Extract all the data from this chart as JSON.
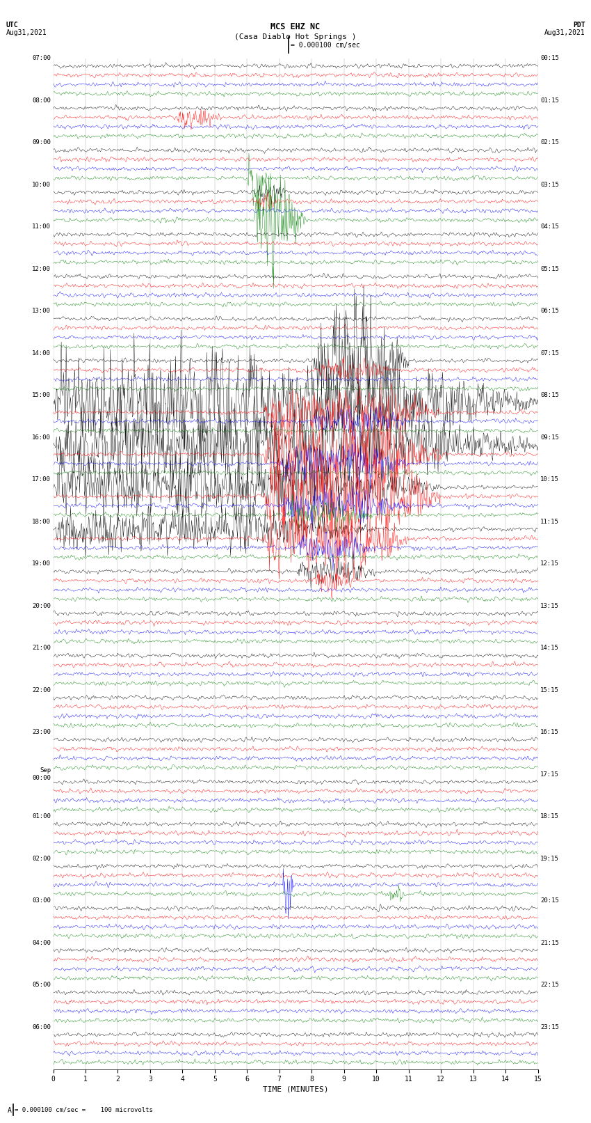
{
  "title_line1": "MCS EHZ NC",
  "title_line2": "(Casa Diablo Hot Springs )",
  "scale_label": "= 0.000100 cm/sec",
  "bottom_label": "= 0.000100 cm/sec =    100 microvolts",
  "utc_label": "UTC\nAug31,2021",
  "pdt_label": "PDT\nAug31,2021",
  "xlabel": "TIME (MINUTES)",
  "left_times_utc": [
    "07:00",
    "08:00",
    "09:00",
    "10:00",
    "11:00",
    "12:00",
    "13:00",
    "14:00",
    "15:00",
    "16:00",
    "17:00",
    "18:00",
    "19:00",
    "20:00",
    "21:00",
    "22:00",
    "23:00",
    "Sep\n00:00",
    "01:00",
    "02:00",
    "03:00",
    "04:00",
    "05:00",
    "06:00"
  ],
  "right_times_pdt": [
    "00:15",
    "01:15",
    "02:15",
    "03:15",
    "04:15",
    "05:15",
    "06:15",
    "07:15",
    "08:15",
    "09:15",
    "10:15",
    "11:15",
    "12:15",
    "13:15",
    "14:15",
    "15:15",
    "16:15",
    "17:15",
    "18:15",
    "19:15",
    "20:15",
    "21:15",
    "22:15",
    "23:15"
  ],
  "n_rows": 24,
  "n_traces_per_row": 4,
  "colors": [
    "black",
    "red",
    "blue",
    "green"
  ],
  "bg_color": "#ffffff",
  "figwidth": 8.5,
  "figheight": 16.13,
  "dpi": 100
}
